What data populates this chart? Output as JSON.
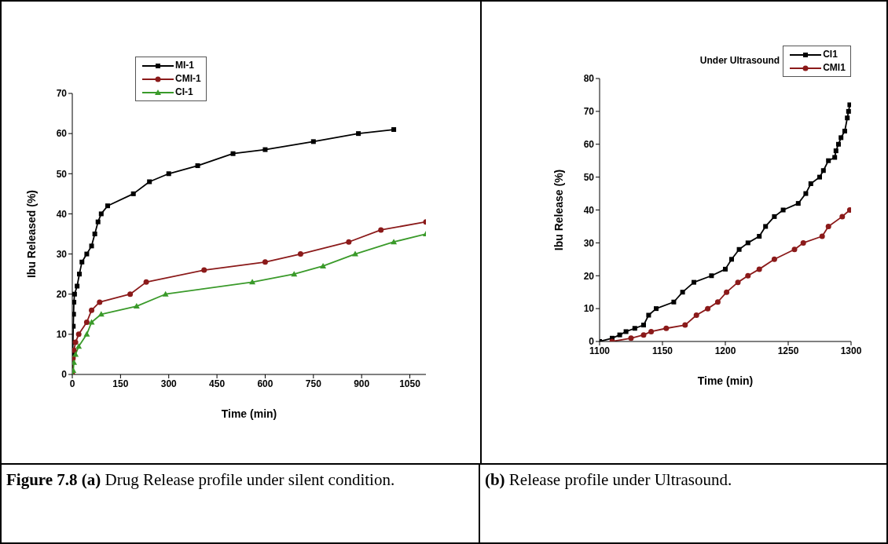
{
  "chart_data": [
    {
      "type": "line",
      "xlabel": "Time (min)",
      "ylabel": "Ibu Released (%)",
      "xlim": [
        0,
        1100
      ],
      "xticks": [
        0,
        150,
        300,
        450,
        600,
        750,
        900,
        1050
      ],
      "ylim": [
        0,
        70
      ],
      "yticks": [
        0,
        10,
        20,
        30,
        40,
        50,
        60,
        70
      ],
      "legend": "top",
      "grid": false,
      "line_style": "solid",
      "annotations": [
        "Figure 7.8 (a)",
        "Drug Release profile under silent condition."
      ],
      "series": [
        {
          "name": "MI-1",
          "color": "#000000",
          "marker": "square",
          "x": [
            0,
            1,
            2,
            3,
            4,
            5,
            7,
            15,
            22,
            30,
            45,
            60,
            70,
            80,
            90,
            110,
            190,
            240,
            300,
            390,
            500,
            600,
            750,
            890,
            1000
          ],
          "values": [
            0,
            5,
            8,
            12,
            15,
            18,
            20,
            22,
            25,
            28,
            30,
            32,
            35,
            38,
            40,
            42,
            45,
            48,
            50,
            52,
            55,
            56,
            58,
            60,
            61
          ]
        },
        {
          "name": "CMI-1",
          "color": "#8b1a1a",
          "marker": "circle",
          "x": [
            0,
            2,
            5,
            10,
            20,
            45,
            60,
            85,
            180,
            230,
            410,
            600,
            710,
            860,
            960,
            1100
          ],
          "values": [
            0,
            4,
            6,
            8,
            10,
            13,
            16,
            18,
            20,
            23,
            26,
            28,
            30,
            33,
            36,
            38
          ]
        },
        {
          "name": "CI-1",
          "color": "#3a9a2a",
          "marker": "triangle",
          "x": [
            0,
            3,
            5,
            10,
            20,
            45,
            60,
            90,
            200,
            290,
            560,
            690,
            780,
            880,
            1000,
            1100
          ],
          "values": [
            0,
            1,
            3,
            5,
            7,
            10,
            13,
            15,
            17,
            20,
            23,
            25,
            27,
            30,
            33,
            35
          ]
        }
      ]
    },
    {
      "type": "line",
      "xlabel": "Time (min)",
      "ylabel": "Ibu Release (%)",
      "legend_title": "Under Ultrasound",
      "xlim": [
        1100,
        1300
      ],
      "xticks": [
        1100,
        1150,
        1200,
        1250,
        1300
      ],
      "ylim": [
        0,
        80
      ],
      "yticks": [
        0,
        10,
        20,
        30,
        40,
        50,
        60,
        70,
        80
      ],
      "legend": "top right",
      "grid": false,
      "line_style": "solid",
      "annotations": [
        "(b)",
        "Release profile under Ultrasound."
      ],
      "series": [
        {
          "name": "CI1",
          "color": "#000000",
          "marker": "square",
          "x": [
            1100,
            1110,
            1116,
            1121,
            1128,
            1135,
            1139,
            1145,
            1159,
            1166,
            1175,
            1189,
            1200,
            1205,
            1211,
            1218,
            1227,
            1232,
            1239,
            1246,
            1258,
            1264,
            1268,
            1275,
            1278,
            1282,
            1287,
            1288,
            1290,
            1292,
            1295,
            1297,
            1298,
            1299
          ],
          "values": [
            0,
            1,
            2,
            3,
            4,
            5,
            8,
            10,
            12,
            15,
            18,
            20,
            22,
            25,
            28,
            30,
            32,
            35,
            38,
            40,
            42,
            45,
            48,
            50,
            52,
            55,
            56,
            58,
            60,
            62,
            64,
            68,
            70,
            72
          ]
        },
        {
          "name": "CMI1",
          "color": "#8b1a1a",
          "marker": "circle",
          "x": [
            1110,
            1125,
            1135,
            1141,
            1153,
            1168,
            1177,
            1186,
            1194,
            1201,
            1210,
            1218,
            1227,
            1239,
            1255,
            1262,
            1277,
            1282,
            1293,
            1299
          ],
          "values": [
            0,
            1,
            2,
            3,
            4,
            5,
            8,
            10,
            12,
            15,
            18,
            20,
            22,
            25,
            28,
            30,
            32,
            35,
            38,
            40
          ]
        }
      ]
    }
  ]
}
